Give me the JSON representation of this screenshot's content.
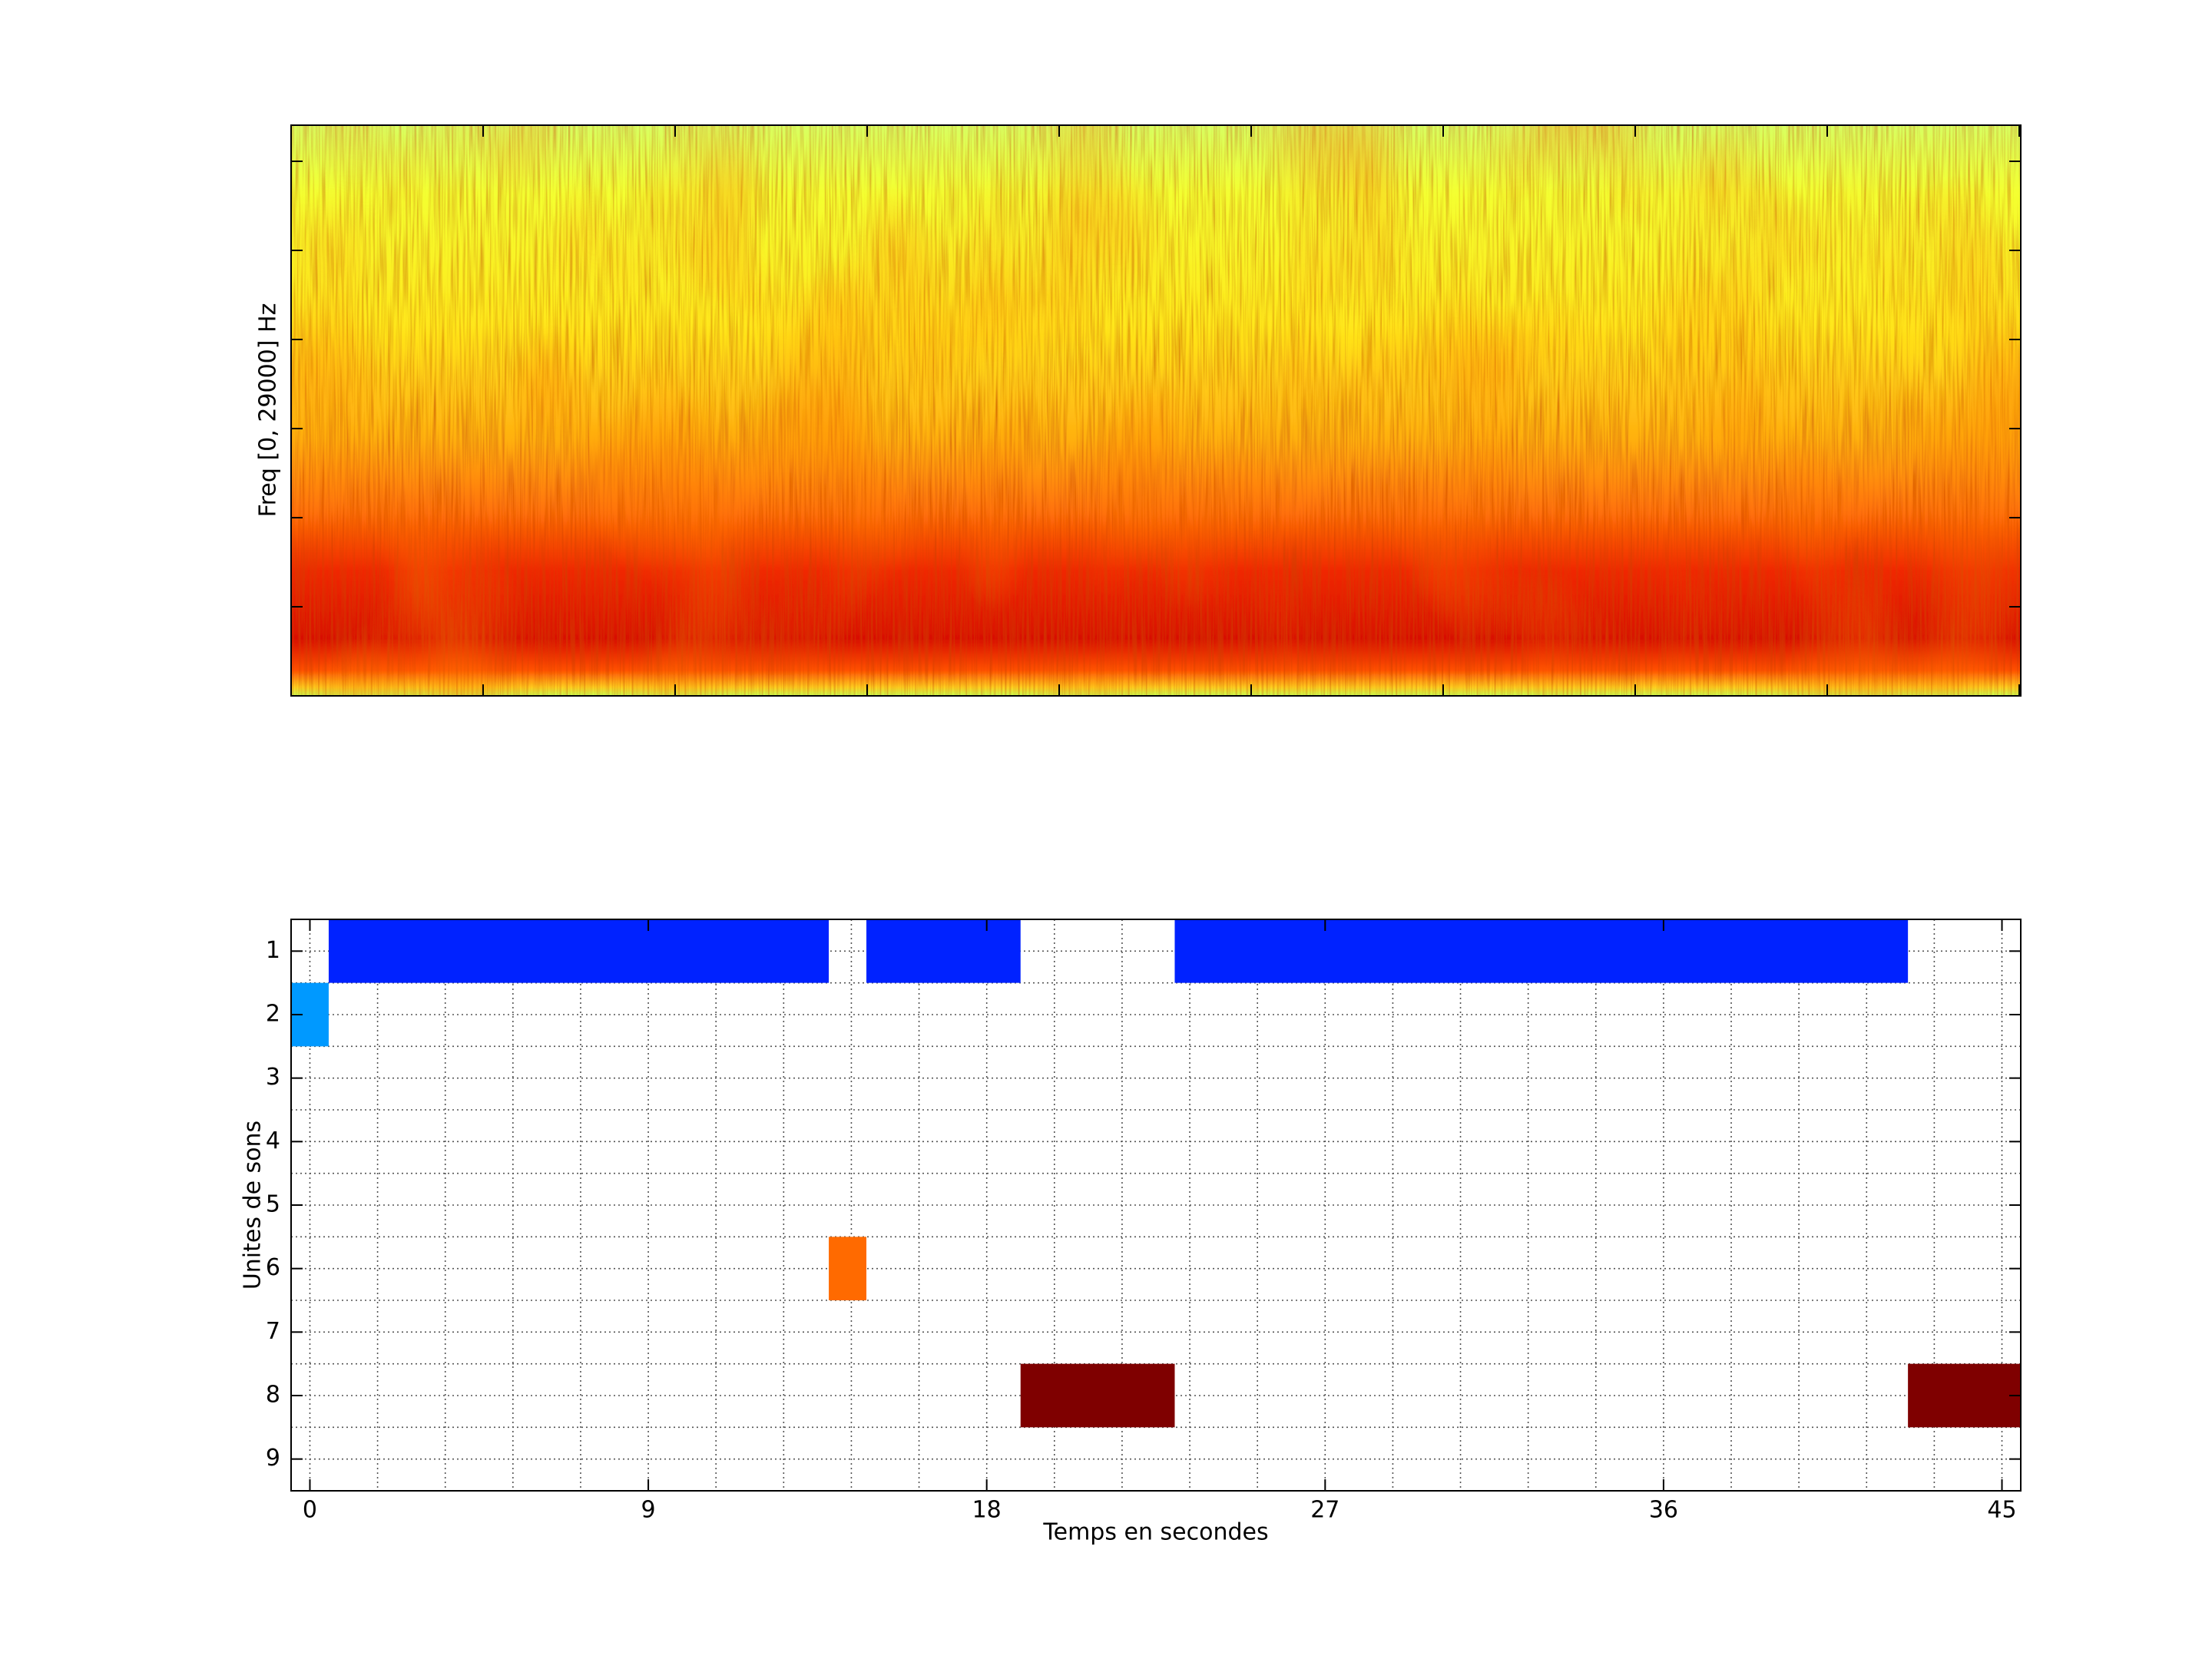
{
  "chart_data": [
    {
      "type": "spectrogram",
      "ylabel": "Freq [0, 29000] Hz"
    },
    {
      "type": "segments",
      "xlabel": "Temps en secondes",
      "ylabel": "Unites de sons",
      "xlim": [
        -0.5,
        45.5
      ],
      "xticks": [
        0,
        9,
        18,
        27,
        36,
        45
      ],
      "ylim": [
        9.5,
        0.5
      ],
      "yticks": [
        1,
        2,
        3,
        4,
        5,
        6,
        7,
        8,
        9
      ],
      "grid": true,
      "segments": [
        {
          "row": 1,
          "start": 0.5,
          "end": 13.8,
          "color": "#0022ff"
        },
        {
          "row": 1,
          "start": 14.8,
          "end": 18.9,
          "color": "#0022ff"
        },
        {
          "row": 1,
          "start": 23.0,
          "end": 42.5,
          "color": "#0022ff"
        },
        {
          "row": 2,
          "start": -0.5,
          "end": 0.5,
          "color": "#0099ff"
        },
        {
          "row": 6,
          "start": 13.8,
          "end": 14.8,
          "color": "#ff6a00"
        },
        {
          "row": 8,
          "start": 18.9,
          "end": 23.0,
          "color": "#7f0000"
        },
        {
          "row": 8,
          "start": 42.5,
          "end": 45.5,
          "color": "#7f0000"
        }
      ]
    }
  ]
}
